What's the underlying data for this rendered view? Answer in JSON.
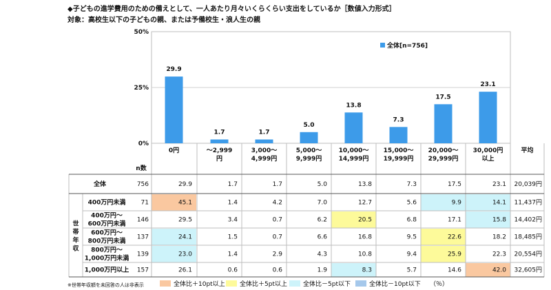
{
  "title": "◆子どもの進学費用のための備えとして、一人あたり月々いくらくらい支出をしているか［数値入力形式］",
  "subtitle": "対象：高校生以下の子どもの親、または予備校生・浪人生の親",
  "chart_data": {
    "type": "bar",
    "categories": [
      "0円",
      "～2,999円",
      "3,000～4,999円",
      "5,000～9,999円",
      "10,000～14,999円",
      "15,000～19,999円",
      "20,000～29,999円",
      "30,000円以上"
    ],
    "category_lines": [
      [
        "0円"
      ],
      [
        "～2,999",
        "円"
      ],
      [
        "3,000～",
        "4,999円"
      ],
      [
        "5,000～",
        "9,999円"
      ],
      [
        "10,000～",
        "14,999円"
      ],
      [
        "15,000～",
        "19,999円"
      ],
      [
        "20,000～",
        "29,999円"
      ],
      [
        "30,000円",
        "以上"
      ]
    ],
    "series": [
      {
        "name": "全体[n=756]",
        "values": [
          29.9,
          1.7,
          1.7,
          5.0,
          13.8,
          7.3,
          17.5,
          23.1
        ]
      }
    ],
    "data_labels": [
      "29.9",
      "1.7",
      "1.7",
      "5.0",
      "13.8",
      "7.3",
      "17.5",
      "23.1"
    ],
    "ylim": [
      0,
      50
    ],
    "yticks": [
      "0%",
      "25%",
      "50%"
    ],
    "bar_color": "#3d9be9",
    "legend": "top-right"
  },
  "table": {
    "n_header": "n数",
    "avg_header": "平均",
    "group_label": "世帯年収",
    "rows": [
      {
        "label": "全体",
        "n": "756",
        "values": [
          "29.9",
          "1.7",
          "1.7",
          "5.0",
          "13.8",
          "7.3",
          "17.5",
          "23.1"
        ],
        "avg": "20,039円"
      },
      {
        "label": "400万円未満",
        "n": "71",
        "values": [
          "45.1",
          "1.4",
          "4.2",
          "7.0",
          "12.7",
          "5.6",
          "9.9",
          "14.1"
        ],
        "avg": "11,437円"
      },
      {
        "label": "400万円～600万円未満",
        "label_lines": [
          "400万円～",
          "600万円未満"
        ],
        "n": "146",
        "values": [
          "29.5",
          "3.4",
          "0.7",
          "6.2",
          "20.5",
          "6.8",
          "17.1",
          "15.8"
        ],
        "avg": "14,402円"
      },
      {
        "label": "600万円～800万円未満",
        "label_lines": [
          "600万円～",
          "800万円未満"
        ],
        "n": "137",
        "values": [
          "24.1",
          "1.5",
          "0.7",
          "6.6",
          "16.8",
          "9.5",
          "22.6",
          "18.2"
        ],
        "avg": "18,485円"
      },
      {
        "label": "800万円～1,000万円未満",
        "label_lines": [
          "800万円～",
          "1,000万円未満"
        ],
        "n": "139",
        "values": [
          "23.0",
          "1.4",
          "2.9",
          "4.3",
          "10.8",
          "9.4",
          "25.9",
          "22.3"
        ],
        "avg": "20,554円"
      },
      {
        "label": "1,000万円以上",
        "n": "157",
        "values": [
          "26.1",
          "0.6",
          "0.6",
          "1.9",
          "8.3",
          "5.7",
          "14.6",
          "42.0"
        ],
        "avg": "32,605円"
      }
    ],
    "highlights": [
      [
        null,
        null,
        null,
        null,
        null,
        null,
        null,
        null
      ],
      [
        "orange",
        null,
        null,
        null,
        null,
        null,
        "lightblue",
        "lightblue"
      ],
      [
        null,
        null,
        null,
        null,
        "yellow",
        null,
        null,
        "lightblue"
      ],
      [
        "lightblue",
        null,
        null,
        null,
        null,
        null,
        "yellow",
        null
      ],
      [
        "lightblue",
        null,
        null,
        null,
        null,
        null,
        "yellow",
        null
      ],
      [
        null,
        null,
        null,
        null,
        "lightblue",
        null,
        null,
        "orange"
      ]
    ]
  },
  "colors": {
    "orange": "#fac8a0",
    "yellow": "#fdfa9a",
    "lightblue": "#cdf3fa",
    "blue": "#a5c8eb",
    "grid": "#555555"
  },
  "footnote": "※世帯年収額を未回答の人は非表示",
  "legend2": [
    {
      "label": "全体比＋10pt以上",
      "color": "#fac8a0"
    },
    {
      "label": "全体比＋5pt以上",
      "color": "#fdfa9a"
    },
    {
      "label": "全体比－5pt以下",
      "color": "#cdf3fa"
    },
    {
      "label": "全体比－10pt以下",
      "color": "#a5c8eb"
    }
  ],
  "pct_unit": "（％）"
}
